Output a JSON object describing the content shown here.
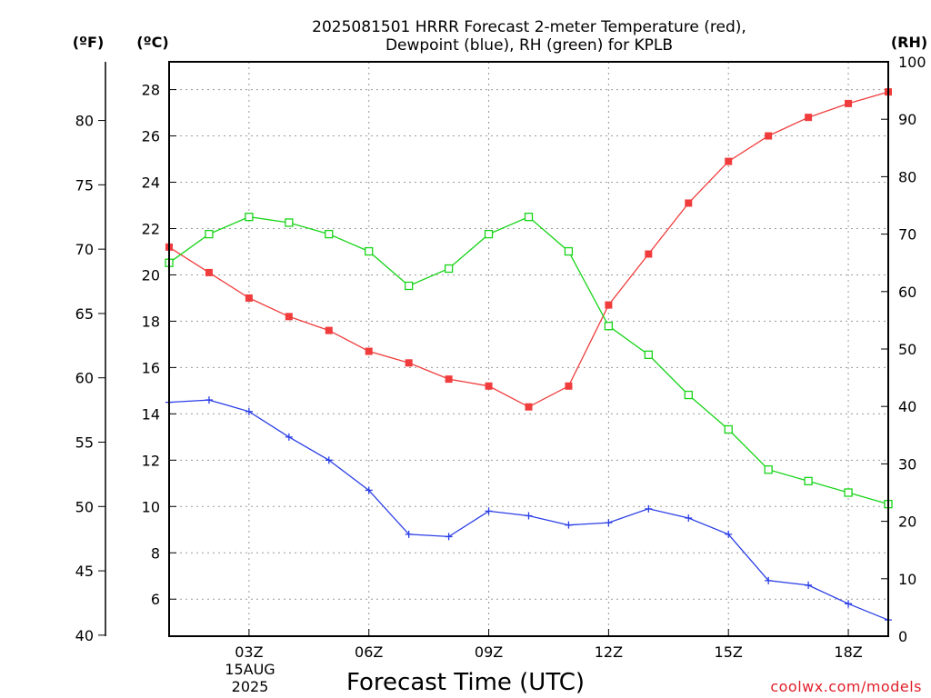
{
  "chart_data": {
    "type": "line",
    "title_line1": "2025081501 HRRR Forecast 2-meter Temperature (red),",
    "title_line2": "Dewpoint (blue), RH (green) for KPLB",
    "xlabel": "Forecast Time (UTC)",
    "date_label_line1": "15AUG",
    "date_label_line2": "2025",
    "credit": "coolwx.com/models",
    "y_left_unit_f": "(ºF)",
    "y_left_unit_c": "(ºC)",
    "y_right_unit": "(RH)",
    "ylim_celsius": [
      4.4,
      29.2
    ],
    "ylim_rh": [
      0,
      100
    ],
    "x_hours": [
      1,
      2,
      3,
      4,
      5,
      6,
      7,
      8,
      9,
      10,
      11,
      12,
      13,
      14,
      15,
      16,
      17,
      18,
      19
    ],
    "x_ticks": [
      {
        "hour": 3,
        "label": "03Z"
      },
      {
        "hour": 6,
        "label": "06Z"
      },
      {
        "hour": 9,
        "label": "09Z"
      },
      {
        "hour": 12,
        "label": "12Z"
      },
      {
        "hour": 15,
        "label": "15Z"
      },
      {
        "hour": 18,
        "label": "18Z"
      }
    ],
    "y_ticks_celsius": [
      "6",
      "8",
      "10",
      "12",
      "14",
      "16",
      "18",
      "20",
      "22",
      "24",
      "26",
      "28"
    ],
    "y_ticks_fahrenheit": [
      "40",
      "45",
      "50",
      "55",
      "60",
      "65",
      "70",
      "75",
      "80"
    ],
    "y_ticks_rh": [
      "0",
      "10",
      "20",
      "30",
      "40",
      "50",
      "60",
      "70",
      "80",
      "90",
      "100"
    ],
    "series": [
      {
        "name": "Temperature",
        "axis": "celsius",
        "marker": "filled-square",
        "color": "#f03c3c",
        "values": [
          21.2,
          20.1,
          19.0,
          18.2,
          17.6,
          16.7,
          16.2,
          15.5,
          15.2,
          14.3,
          15.2,
          18.7,
          20.9,
          23.1,
          24.9,
          26.0,
          26.8,
          27.4,
          27.9
        ]
      },
      {
        "name": "Dewpoint",
        "axis": "celsius",
        "marker": "plus",
        "color": "#2a3ee6",
        "values": [
          14.5,
          14.6,
          14.1,
          13.0,
          12.0,
          10.7,
          8.8,
          8.7,
          9.8,
          9.6,
          9.2,
          9.3,
          9.9,
          9.5,
          8.8,
          6.8,
          6.6,
          5.8,
          5.1
        ]
      },
      {
        "name": "RH",
        "axis": "rh",
        "marker": "open-square",
        "color": "#18d418",
        "values": [
          65,
          70,
          73,
          72,
          70,
          67,
          61,
          64,
          70,
          73,
          67,
          54,
          49,
          42,
          36,
          29,
          27,
          25,
          23
        ]
      }
    ]
  }
}
